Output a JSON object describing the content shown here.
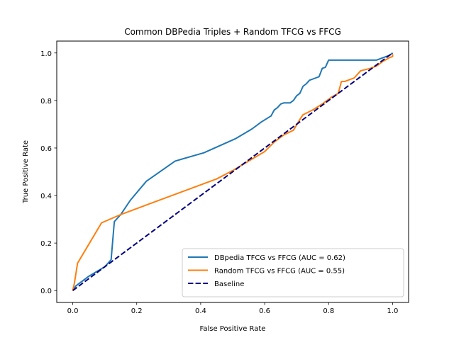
{
  "chart_data": {
    "type": "line",
    "title": "Common DBPedia Triples + Random TFCG vs FFCG",
    "xlabel": "False Positive Rate",
    "ylabel": "True Positive Rate",
    "xlim": [
      -0.05,
      1.05
    ],
    "ylim": [
      -0.05,
      1.05
    ],
    "xticks": [
      "0.0",
      "0.2",
      "0.4",
      "0.6",
      "0.8",
      "1.0"
    ],
    "yticks": [
      "0.0",
      "0.2",
      "0.4",
      "0.6",
      "0.8",
      "1.0"
    ],
    "grid": false,
    "legend_position": "lower-right",
    "series": [
      {
        "name": "DBpedia TFCG vs FFCG (AUC = 0.62)",
        "color": "#1f77b4",
        "style": "solid",
        "x": [
          0.0,
          0.01,
          0.05,
          0.1,
          0.12,
          0.13,
          0.15,
          0.18,
          0.23,
          0.32,
          0.41,
          0.51,
          0.56,
          0.59,
          0.62,
          0.63,
          0.64,
          0.65,
          0.66,
          0.68,
          0.69,
          0.7,
          0.71,
          0.72,
          0.73,
          0.74,
          0.76,
          0.77,
          0.78,
          0.79,
          0.8,
          0.95,
          0.97,
          0.99,
          1.0
        ],
        "y": [
          0.0,
          0.02,
          0.06,
          0.1,
          0.13,
          0.29,
          0.32,
          0.38,
          0.46,
          0.545,
          0.58,
          0.64,
          0.68,
          0.71,
          0.735,
          0.76,
          0.77,
          0.785,
          0.79,
          0.79,
          0.8,
          0.82,
          0.83,
          0.86,
          0.87,
          0.885,
          0.895,
          0.9,
          0.935,
          0.94,
          0.97,
          0.97,
          0.98,
          0.99,
          1.0
        ]
      },
      {
        "name": "Random TFCG vs FFCG (AUC = 0.55)",
        "color": "#ff7f0e",
        "style": "solid",
        "x": [
          0.0,
          0.005,
          0.015,
          0.09,
          0.15,
          0.25,
          0.35,
          0.45,
          0.5,
          0.55,
          0.6,
          0.63,
          0.66,
          0.69,
          0.71,
          0.72,
          0.75,
          0.78,
          0.81,
          0.83,
          0.84,
          0.85,
          0.88,
          0.9,
          0.93,
          0.95,
          0.97,
          0.99,
          1.0,
          1.0
        ],
        "y": [
          0.0,
          0.03,
          0.115,
          0.285,
          0.32,
          0.37,
          0.42,
          0.47,
          0.505,
          0.545,
          0.585,
          0.625,
          0.655,
          0.675,
          0.72,
          0.74,
          0.76,
          0.785,
          0.815,
          0.83,
          0.88,
          0.88,
          0.895,
          0.925,
          0.935,
          0.945,
          0.965,
          0.98,
          0.985,
          0.995
        ]
      },
      {
        "name": "Baseline",
        "color": "#000080",
        "style": "dashed",
        "x": [
          0.0,
          1.0
        ],
        "y": [
          0.0,
          1.0
        ]
      }
    ]
  }
}
